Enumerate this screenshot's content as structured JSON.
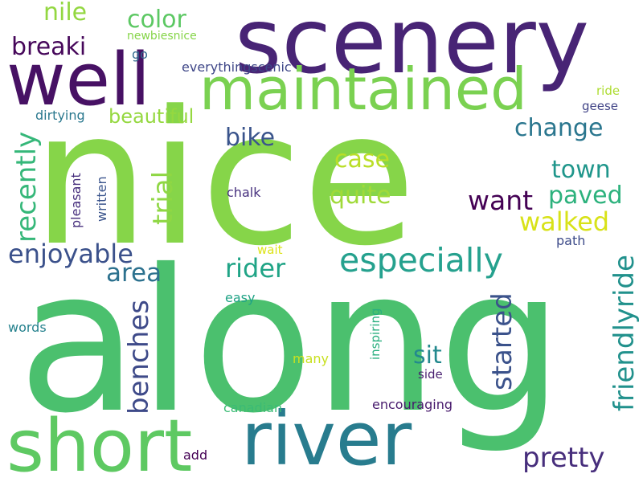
{
  "words": [
    {
      "text": "along",
      "color": "#4bc06e"
    },
    {
      "text": "nice",
      "color": "#86d549"
    },
    {
      "text": "scenery",
      "color": "#482475"
    },
    {
      "text": "river",
      "color": "#287c8e"
    },
    {
      "text": "short",
      "color": "#5ec962"
    },
    {
      "text": "well",
      "color": "#471164"
    },
    {
      "text": "maintained",
      "color": "#7ad151"
    },
    {
      "text": "especially",
      "color": "#25a18e"
    },
    {
      "text": "friendlyride",
      "color": "#21918c"
    },
    {
      "text": "recently",
      "color": "#35b779"
    },
    {
      "text": "benches",
      "color": "#3e4a89"
    },
    {
      "text": "started",
      "color": "#3b528b"
    },
    {
      "text": "trial",
      "color": "#8fd744"
    },
    {
      "text": "pretty",
      "color": "#472e7c"
    },
    {
      "text": "walked",
      "color": "#d8e219"
    },
    {
      "text": "enjoyable",
      "color": "#3b518b"
    },
    {
      "text": "want",
      "color": "#440154"
    },
    {
      "text": "rider",
      "color": "#20a486"
    },
    {
      "text": "area",
      "color": "#2c718e"
    },
    {
      "text": "sit",
      "color": "#23898e"
    },
    {
      "text": "paved",
      "color": "#2db27d"
    },
    {
      "text": "town",
      "color": "#1f968b"
    },
    {
      "text": "change",
      "color": "#2a768e"
    },
    {
      "text": "quite",
      "color": "#a0da39"
    },
    {
      "text": "case",
      "color": "#bade28"
    },
    {
      "text": "bike",
      "color": "#3a548c"
    },
    {
      "text": "beautiful",
      "color": "#95d840"
    },
    {
      "text": "breaki",
      "color": "#46075a"
    },
    {
      "text": "nile",
      "color": "#93d741"
    },
    {
      "text": "color",
      "color": "#5cc863"
    },
    {
      "text": "chalk",
      "color": "#46307e"
    },
    {
      "text": "pleasant",
      "color": "#472f7d"
    },
    {
      "text": "written",
      "color": "#3a548c"
    },
    {
      "text": "dirtying",
      "color": "#2a788e"
    },
    {
      "text": "newbiesnice",
      "color": "#86d549"
    },
    {
      "text": "go",
      "color": "#31688e"
    },
    {
      "text": "everythingscenic",
      "color": "#3f4788"
    },
    {
      "text": "ride",
      "color": "#addc30"
    },
    {
      "text": "geese",
      "color": "#414487"
    },
    {
      "text": "wait",
      "color": "#dde318"
    },
    {
      "text": "path",
      "color": "#3e4c8a"
    },
    {
      "text": "easy",
      "color": "#20a386"
    },
    {
      "text": "words",
      "color": "#26828e"
    },
    {
      "text": "many",
      "color": "#c8e020"
    },
    {
      "text": "inspiring",
      "color": "#29af7f"
    },
    {
      "text": "side",
      "color": "#481f70"
    },
    {
      "text": "canadian",
      "color": "#3bbb75"
    },
    {
      "text": "encouraging",
      "color": "#481b6d"
    },
    {
      "text": "add",
      "color": "#440154"
    }
  ]
}
